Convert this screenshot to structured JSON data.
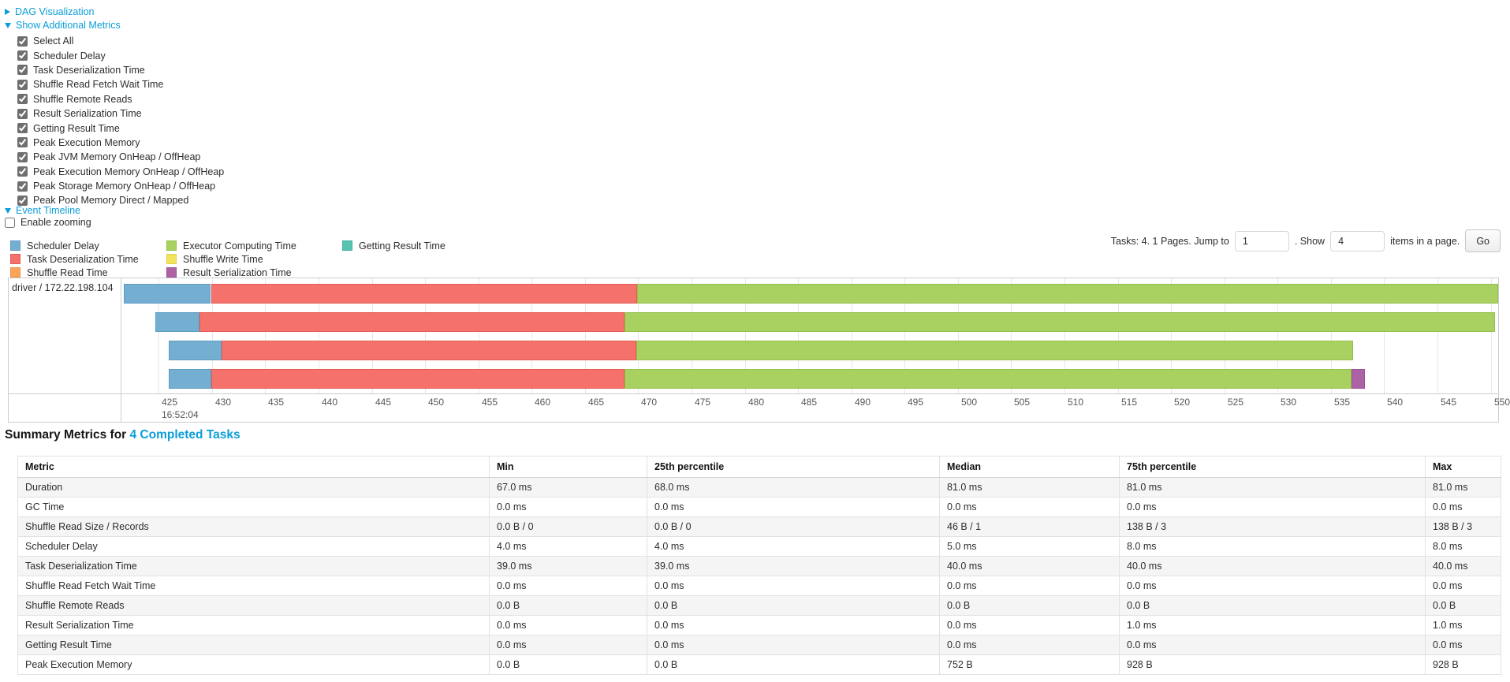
{
  "colors": {
    "link": "#0b9dd8",
    "scheduler_delay": {
      "fill": "#74AFD2",
      "border": "#5E9CC1"
    },
    "task_deserialization": {
      "fill": "#F4726B",
      "border": "#E55B54"
    },
    "shuffle_read": {
      "fill": "#F9A45B",
      "border": "#EE8F42"
    },
    "executor_computing": {
      "fill": "#A9D161",
      "border": "#95C04C"
    },
    "shuffle_write": {
      "fill": "#F2E25D",
      "border": "#E3D147"
    },
    "result_serialization": {
      "fill": "#AE62A6",
      "border": "#9B5193"
    },
    "getting_result": {
      "fill": "#58C3B0",
      "border": "#45B09D"
    }
  },
  "toggles": {
    "dag": {
      "label": "DAG Visualization",
      "state": "collapsed"
    },
    "additional_metrics": {
      "label": "Show Additional Metrics",
      "state": "expanded"
    },
    "event_timeline": {
      "label": "Event Timeline",
      "state": "expanded"
    }
  },
  "metrics_panel": {
    "items": [
      {
        "label": "Select All",
        "checked": true
      },
      {
        "label": "Scheduler Delay",
        "checked": true
      },
      {
        "label": "Task Deserialization Time",
        "checked": true
      },
      {
        "label": "Shuffle Read Fetch Wait Time",
        "checked": true
      },
      {
        "label": "Shuffle Remote Reads",
        "checked": true
      },
      {
        "label": "Result Serialization Time",
        "checked": true
      },
      {
        "label": "Getting Result Time",
        "checked": true
      },
      {
        "label": "Peak Execution Memory",
        "checked": true
      },
      {
        "label": "Peak JVM Memory OnHeap / OffHeap",
        "checked": true
      },
      {
        "label": "Peak Execution Memory OnHeap / OffHeap",
        "checked": true
      },
      {
        "label": "Peak Storage Memory OnHeap / OffHeap",
        "checked": true
      },
      {
        "label": "Peak Pool Memory Direct / Mapped",
        "checked": true
      }
    ]
  },
  "enable_zooming": {
    "label": "Enable zooming",
    "checked": false
  },
  "legend": {
    "columns": [
      [
        {
          "label": "Scheduler Delay",
          "key": "scheduler_delay"
        },
        {
          "label": "Task Deserialization Time",
          "key": "task_deserialization"
        },
        {
          "label": "Shuffle Read Time",
          "key": "shuffle_read"
        }
      ],
      [
        {
          "label": "Executor Computing Time",
          "key": "executor_computing"
        },
        {
          "label": "Shuffle Write Time",
          "key": "shuffle_write"
        },
        {
          "label": "Result Serialization Time",
          "key": "result_serialization"
        }
      ],
      [
        {
          "label": "Getting Result Time",
          "key": "getting_result"
        }
      ]
    ]
  },
  "pagination": {
    "prefix": "Tasks: 4. 1 Pages. Jump to",
    "jump_value": "1",
    "mid": ". Show",
    "show_value": "4",
    "suffix": "items in a page.",
    "go_label": "Go"
  },
  "chart_data": {
    "type": "timeline",
    "group_label": "driver / 172.22.198.104",
    "axis": {
      "min": 421.5,
      "max": 550.7,
      "tick_start": 425,
      "tick_end": 550,
      "tick_step": 5,
      "time_label": "16:52:04",
      "time_label_at": 425
    },
    "tasks": [
      {
        "segments": [
          {
            "key": "scheduler_delay",
            "start": 421.7,
            "end": 429.9
          },
          {
            "key": "task_deserialization",
            "start": 429.9,
            "end": 469.9
          },
          {
            "key": "executor_computing",
            "start": 469.9,
            "end": 550.7
          }
        ]
      },
      {
        "segments": [
          {
            "key": "scheduler_delay",
            "start": 424.7,
            "end": 428.8
          },
          {
            "key": "task_deserialization",
            "start": 428.8,
            "end": 468.7
          },
          {
            "key": "executor_computing",
            "start": 468.7,
            "end": 550.4
          }
        ]
      },
      {
        "segments": [
          {
            "key": "scheduler_delay",
            "start": 425.9,
            "end": 430.9
          },
          {
            "key": "task_deserialization",
            "start": 430.9,
            "end": 469.8
          },
          {
            "key": "executor_computing",
            "start": 469.8,
            "end": 537.1
          }
        ]
      },
      {
        "segments": [
          {
            "key": "scheduler_delay",
            "start": 425.9,
            "end": 429.9
          },
          {
            "key": "task_deserialization",
            "start": 429.9,
            "end": 468.7
          },
          {
            "key": "executor_computing",
            "start": 468.7,
            "end": 536.9
          },
          {
            "key": "result_serialization",
            "start": 536.9,
            "end": 538.2
          }
        ]
      }
    ]
  },
  "summary": {
    "title_prefix": "Summary Metrics for ",
    "title_link": "4 Completed Tasks",
    "table": {
      "columns": [
        "Metric",
        "Min",
        "25th percentile",
        "Median",
        "75th percentile",
        "Max"
      ],
      "rows": [
        {
          "metric": "Duration",
          "values": [
            "67.0 ms",
            "68.0 ms",
            "81.0 ms",
            "81.0 ms",
            "81.0 ms"
          ]
        },
        {
          "metric": "GC Time",
          "values": [
            "0.0 ms",
            "0.0 ms",
            "0.0 ms",
            "0.0 ms",
            "0.0 ms"
          ]
        },
        {
          "metric": "Shuffle Read Size / Records",
          "values": [
            "0.0 B / 0",
            "0.0 B / 0",
            "46 B / 1",
            "138 B / 3",
            "138 B / 3"
          ]
        },
        {
          "metric": "Scheduler Delay",
          "values": [
            "4.0 ms",
            "4.0 ms",
            "5.0 ms",
            "8.0 ms",
            "8.0 ms"
          ]
        },
        {
          "metric": "Task Deserialization Time",
          "values": [
            "39.0 ms",
            "39.0 ms",
            "40.0 ms",
            "40.0 ms",
            "40.0 ms"
          ]
        },
        {
          "metric": "Shuffle Read Fetch Wait Time",
          "values": [
            "0.0 ms",
            "0.0 ms",
            "0.0 ms",
            "0.0 ms",
            "0.0 ms"
          ]
        },
        {
          "metric": "Shuffle Remote Reads",
          "values": [
            "0.0 B",
            "0.0 B",
            "0.0 B",
            "0.0 B",
            "0.0 B"
          ]
        },
        {
          "metric": "Result Serialization Time",
          "values": [
            "0.0 ms",
            "0.0 ms",
            "0.0 ms",
            "1.0 ms",
            "1.0 ms"
          ]
        },
        {
          "metric": "Getting Result Time",
          "values": [
            "0.0 ms",
            "0.0 ms",
            "0.0 ms",
            "0.0 ms",
            "0.0 ms"
          ]
        },
        {
          "metric": "Peak Execution Memory",
          "values": [
            "0.0 B",
            "0.0 B",
            "752 B",
            "928 B",
            "928 B"
          ]
        }
      ]
    }
  }
}
